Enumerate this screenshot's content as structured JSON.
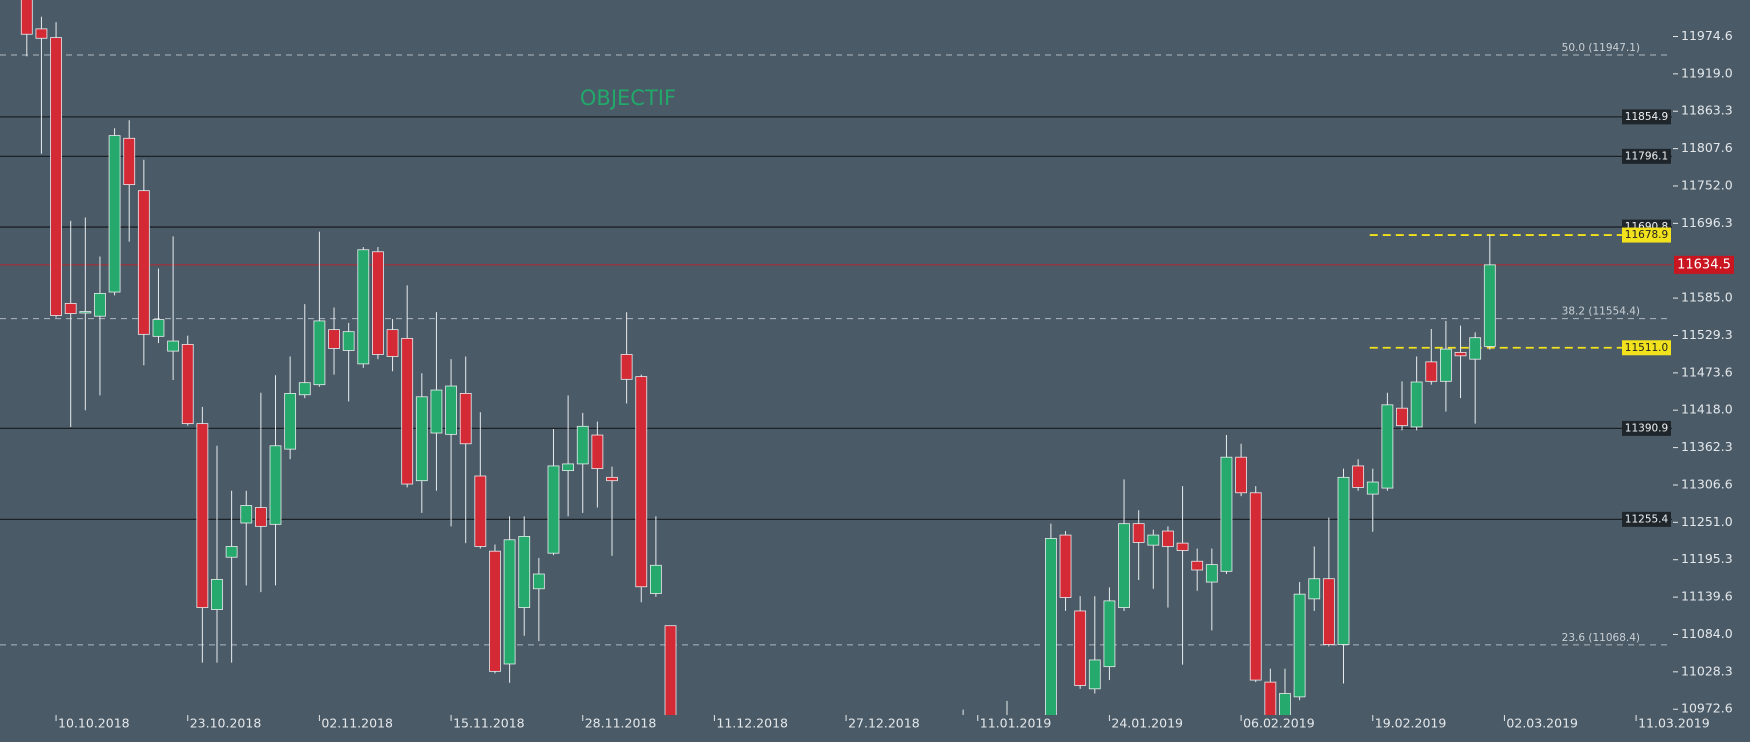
{
  "chart_data": {
    "type": "candlestick",
    "annotation": "OBJECTIF",
    "categories": [
      null,
      null,
      "10.10.2018",
      null,
      null,
      null,
      null,
      null,
      null,
      null,
      null,
      "23.10.2018",
      null,
      null,
      null,
      null,
      null,
      null,
      null,
      null,
      "02.11.2018",
      null,
      null,
      null,
      null,
      null,
      null,
      null,
      null,
      "15.11.2018",
      null,
      null,
      null,
      null,
      null,
      null,
      null,
      null,
      "28.11.2018",
      null,
      null,
      null,
      null,
      null,
      null,
      null,
      null,
      "11.12.2018",
      null,
      null,
      null,
      null,
      null,
      null,
      null,
      null,
      "27.12.2018",
      null,
      null,
      null,
      null,
      null,
      null,
      null,
      null,
      "11.01.2019",
      null,
      null,
      null,
      null,
      null,
      null,
      null,
      null,
      "24.01.2019",
      null,
      null,
      null,
      null,
      null,
      null,
      null,
      null,
      "06.02.2019",
      null,
      null,
      null,
      null,
      null,
      null,
      null,
      null,
      "19.02.2019",
      null,
      null,
      null,
      null,
      null,
      null,
      null,
      null,
      "02.03.2019",
      null,
      null,
      null,
      null,
      null,
      null,
      null,
      null,
      "11.03.2019",
      null,
      null
    ],
    "open": [
      12040,
      11986,
      11973,
      11577,
      11563,
      11558,
      11594,
      11823,
      11745,
      11528,
      11506,
      11516,
      11398,
      11121,
      11199,
      11250,
      11273,
      11248,
      11360,
      11441,
      11456,
      11538,
      11507,
      11487,
      11654,
      11538,
      11525,
      11313,
      11384,
      11382,
      11443,
      11320,
      11208,
      11040,
      11124,
      11152,
      11205,
      11328,
      11338,
      11381,
      11318,
      11501,
      11468,
      11145,
      11097,
      null,
      null,
      null,
      null,
      null,
      null,
      null,
      null,
      null,
      null,
      null,
      null,
      null,
      null,
      null,
      null,
      null,
      null,
      null,
      10950,
      null,
      null,
      10955,
      null,
      null,
      10950,
      11232,
      11119,
      11003,
      11036,
      11124,
      11249,
      11217,
      11238,
      11220,
      11193,
      11162,
      11178,
      11348,
      11295,
      11013,
      10960,
      10991,
      11137,
      11167,
      11069,
      11335,
      11293,
      11302,
      11421,
      11393,
      11490,
      11461,
      11504,
      11494,
      11513,
      null,
      null,
      null,
      null,
      null,
      null,
      null,
      null,
      null,
      null,
      null,
      null
    ],
    "high": [
      12060,
      12004,
      11996,
      11700,
      11705,
      11647,
      11838,
      11850,
      11791,
      11629,
      11677,
      11529,
      11423,
      11365,
      11298,
      11298,
      11444,
      11470,
      11498,
      11576,
      11684,
      11571,
      11548,
      11661,
      11661,
      11554,
      11604,
      11473,
      11564,
      11494,
      11498,
      11415,
      11218,
      11260,
      11260,
      11198,
      11390,
      11440,
      11414,
      11401,
      11334,
      11564,
      11471,
      11260,
      11097,
      null,
      null,
      null,
      null,
      null,
      null,
      null,
      null,
      null,
      null,
      null,
      null,
      null,
      null,
      null,
      null,
      null,
      null,
      null,
      10972,
      null,
      null,
      10985,
      null,
      null,
      11249,
      11238,
      11141,
      11141,
      11154,
      11315,
      11269,
      11240,
      11245,
      11305,
      11212,
      11212,
      11381,
      11368,
      11305,
      11033,
      11033,
      11162,
      11215,
      11258,
      11331,
      11345,
      11331,
      11444,
      11461,
      11498,
      11539,
      11551,
      11544,
      11534,
      11678.9,
      null,
      null,
      null,
      null,
      null,
      null,
      null,
      null,
      null,
      null,
      null,
      null
    ],
    "low": [
      11945,
      11800,
      11556,
      11393,
      11418,
      11440,
      11589,
      11669,
      11485,
      11518,
      11463,
      11395,
      11042,
      11042,
      11042,
      11157,
      11147,
      11157,
      11345,
      11436,
      11453,
      11471,
      11431,
      11481,
      11494,
      11476,
      11303,
      11265,
      11298,
      11245,
      11220,
      11212,
      11026,
      11012,
      11082,
      11074,
      11202,
      11260,
      11265,
      11273,
      11201,
      11428,
      11132,
      11140,
      10950,
      null,
      null,
      null,
      null,
      null,
      null,
      null,
      null,
      null,
      null,
      null,
      null,
      null,
      null,
      null,
      null,
      null,
      null,
      null,
      10920,
      null,
      null,
      10930,
      null,
      null,
      10940,
      11119,
      11003,
      10996,
      11016,
      11119,
      11165,
      11152,
      11124,
      11039,
      11149,
      11090,
      11174,
      11290,
      11013,
      10940,
      10950,
      10986,
      11119,
      11066,
      11011,
      11298,
      11237,
      11298,
      11388,
      11388,
      11456,
      11416,
      11436,
      11398,
      11508,
      null,
      null,
      null,
      null,
      null,
      null,
      null,
      null,
      null,
      null,
      null,
      null
    ],
    "close": [
      11978,
      11972,
      11559,
      11562,
      11565,
      11592,
      11827,
      11754,
      11531,
      11553,
      11521,
      11398,
      11124,
      11166,
      11215,
      11276,
      11245,
      11365,
      11443,
      11459,
      11551,
      11510,
      11535,
      11657,
      11501,
      11498,
      11308,
      11438,
      11448,
      11454,
      11368,
      11215,
      11029,
      11225,
      11230,
      11174,
      11335,
      11338,
      11394,
      11331,
      11313,
      11464,
      11155,
      11187,
      10960,
      null,
      null,
      null,
      null,
      null,
      null,
      null,
      null,
      null,
      null,
      null,
      null,
      null,
      null,
      null,
      null,
      null,
      null,
      null,
      10930,
      null,
      null,
      10940,
      null,
      null,
      11227,
      11139,
      11008,
      11046,
      11134,
      11249,
      11221,
      11232,
      11215,
      11209,
      11180,
      11188,
      11348,
      11295,
      11016,
      10950,
      10996,
      11144,
      11167,
      11069,
      11318,
      11303,
      11311,
      11426,
      11395,
      11460,
      11461,
      11509,
      11499,
      11526,
      11634.5,
      null,
      null,
      null,
      null,
      null,
      null,
      null,
      null,
      null,
      null,
      null,
      null
    ],
    "up_color": "#26a96c",
    "down_color": "#d42a35",
    "ylim": [
      10964,
      12029
    ],
    "yticks": [
      11974.6,
      {
        "value": 11919,
        "label": "11919.0"
      },
      11863.3,
      11807.6,
      {
        "value": 11752,
        "label": "11752.0"
      },
      11696.3,
      {
        "value": 11585,
        "label": "11585.0"
      },
      11529.3,
      11473.6,
      {
        "value": 11418,
        "label": "11418.0"
      },
      11362.3,
      11306.6,
      {
        "value": 11251,
        "label": "11251.0"
      },
      11195.3,
      11139.6,
      {
        "value": 11084,
        "label": "11084.0"
      },
      11028.3,
      10972.6
    ],
    "levels": [
      11854.9,
      11796.1,
      11690.8,
      11390.9,
      11255.4
    ],
    "highlights": [
      11678.9,
      {
        "value": 11511,
        "label": "11511.0"
      }
    ],
    "last_price": 11634.5,
    "fib_levels": [
      {
        "value": 11947.1,
        "label": "50.0 (11947.1)"
      },
      {
        "value": 11554.4,
        "label": "38.2 (11554.4)"
      },
      {
        "value": 11068.4,
        "label": "23.6 (11068.4)"
      }
    ]
  }
}
